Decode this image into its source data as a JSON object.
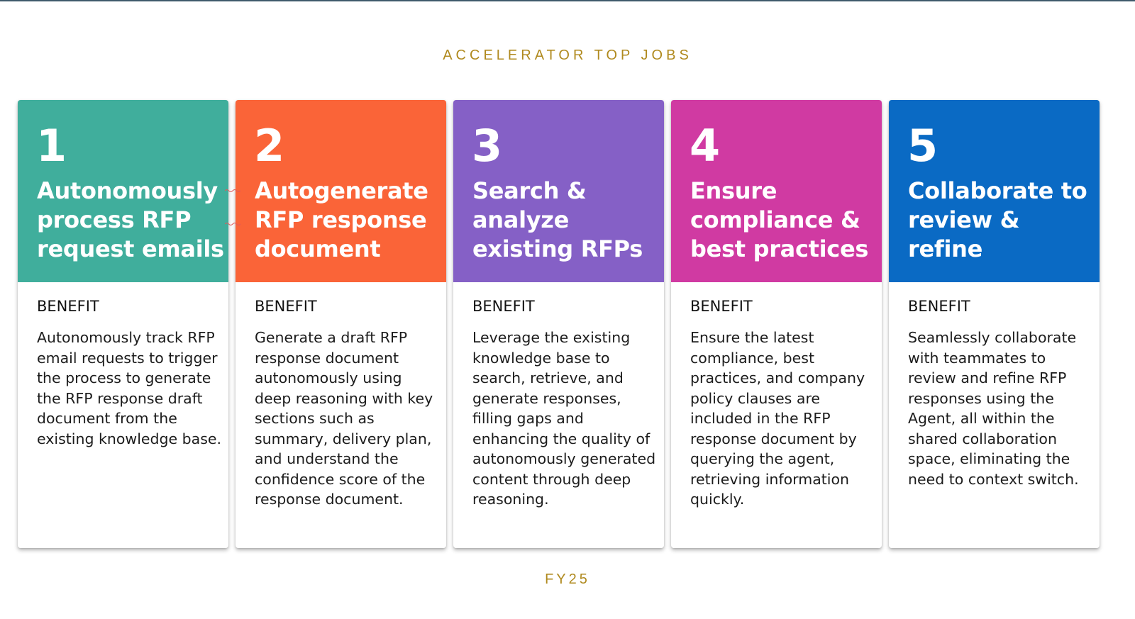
{
  "header": {
    "title": "ACCELERATOR TOP JOBS"
  },
  "cards": [
    {
      "number": "1",
      "title": "Autonomously process RFP request emails",
      "benefit_label": "BENEFIT",
      "benefit_text": "Autonomously track RFP email requests to trigger the process to generate the RFP response draft document from the existing knowledge base.",
      "color": "#40ae9c"
    },
    {
      "number": "2",
      "title": "Autogenerate RFP response document",
      "benefit_label": "BENEFIT",
      "benefit_text": "Generate a draft RFP response document autonomously  using deep reasoning with key sections such as summary, delivery plan, and understand the confidence score of the response document.",
      "color": "#fa6438"
    },
    {
      "number": "3",
      "title": "Search & analyze existing RFPs",
      "benefit_label": "BENEFIT",
      "benefit_text": "Leverage the existing knowledge base to search, retrieve, and generate responses, filling gaps and enhancing the quality of autonomously generated content through deep reasoning.",
      "color": "#8560c6"
    },
    {
      "number": "4",
      "title": "Ensure compliance & best practices",
      "benefit_label": "BENEFIT",
      "benefit_text": "Ensure the latest compliance, best practices, and company policy clauses are included in the RFP response document by querying the agent, retrieving information quickly.",
      "color": "#d03aa2"
    },
    {
      "number": "5",
      "title": "Collaborate to review & refine",
      "benefit_label": "BENEFIT",
      "benefit_text": "Seamlessly collaborate with teammates to review and refine RFP responses using the Agent, all within the shared collaboration space, eliminating the need to context switch.",
      "color": "#0a6ac4"
    }
  ],
  "footer": {
    "label": "FY25"
  }
}
